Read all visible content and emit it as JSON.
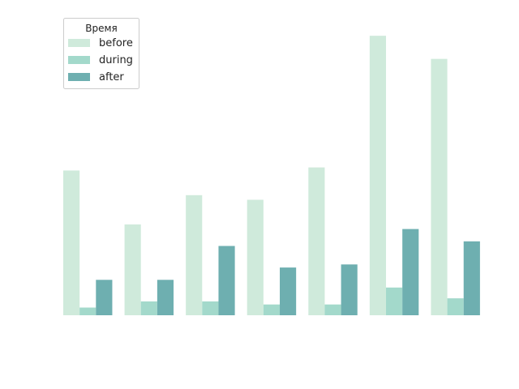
{
  "chart_data": {
    "type": "bar",
    "categories": [
      "",
      "",
      "",
      "",
      "",
      "",
      ""
    ],
    "series": [
      {
        "name": "before",
        "color": "#cfeadb",
        "values": [
          188,
          118,
          156,
          150,
          192,
          363,
          333
        ]
      },
      {
        "name": "during",
        "color": "#a3d9cb",
        "values": [
          10,
          18,
          18,
          14,
          14,
          36,
          22
        ]
      },
      {
        "name": "after",
        "color": "#6eafb0",
        "values": [
          46,
          46,
          90,
          62,
          66,
          112,
          96
        ]
      }
    ],
    "title": "",
    "xlabel": "",
    "ylabel": "",
    "ylim": [
      0,
      380
    ],
    "axes_visible": false,
    "grid": false,
    "legend": {
      "title": "Время",
      "placement": "top-left"
    }
  }
}
